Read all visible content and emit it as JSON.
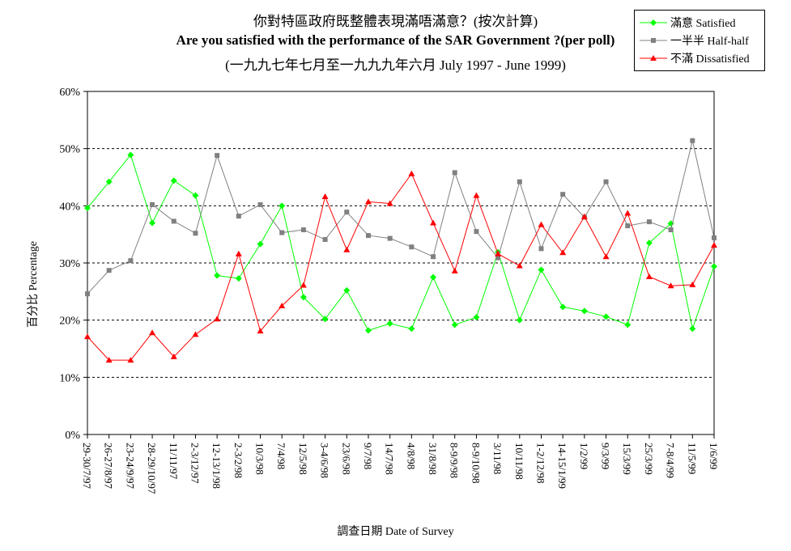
{
  "title": {
    "line1": "你對特區政府既整體表現滿唔滿意？(按次計算)",
    "line2": "Are you satisfied with the performance of the SAR Government ?(per poll)",
    "line3": "(一九九七年七月至一九九九年六月 July 1997 - June 1999)"
  },
  "legend": {
    "satisfied": "滿意 Satisfied",
    "half": "一半半 Half-half",
    "dissatisfied": "不滿 Dissatisfied"
  },
  "colors": {
    "satisfied": "#00ff00",
    "half": "#808080",
    "dissatisfied": "#ff0000"
  },
  "chart_data": {
    "type": "line",
    "title": "Are you satisfied with the performance of the SAR Government ?(per poll)",
    "xlabel": "調查日期 Date of Survey",
    "ylabel": "百分比 Percentage",
    "ylim": [
      0,
      60
    ],
    "yticks": [
      "0%",
      "10%",
      "20%",
      "30%",
      "40%",
      "50%",
      "60%"
    ],
    "grid": "horizontal dashed",
    "legend_position": "top-right",
    "categories": [
      "29-30/7/97",
      "26-27/8/97",
      "23-24/9/97",
      "28-29/10/97",
      "11/11/97",
      "2-3/12/97",
      "12-13/1/98",
      "2-3/2/98",
      "10/3/98",
      "7/4/98",
      "12/5/98",
      "3-4/6/98",
      "23/6/98",
      "9/7/98",
      "14/7/98",
      "4/8/98",
      "31/8/98",
      "8-9/9/98",
      "8-9/10/98",
      "3/11/98",
      "10/11/98",
      "1-2/12/98",
      "14-15/1/99",
      "1/2/99",
      "9/3/99",
      "15/3/99",
      "25/3/99",
      "7-8/4/99",
      "11/5/99",
      "1/6/99"
    ],
    "series": [
      {
        "name": "滿意 Satisfied",
        "marker": "diamond",
        "values": [
          39.6,
          44.2,
          48.9,
          37.0,
          44.4,
          41.8,
          27.8,
          27.3,
          33.3,
          40.0,
          24.0,
          20.2,
          25.2,
          18.2,
          19.4,
          18.5,
          27.5,
          19.2,
          20.5,
          31.9,
          20.0,
          28.8,
          22.3,
          21.6,
          20.6,
          19.2,
          33.5,
          36.9,
          18.5,
          29.4
        ]
      },
      {
        "name": "一半半 Half-half",
        "marker": "square",
        "values": [
          24.6,
          28.7,
          30.4,
          40.2,
          37.3,
          35.2,
          48.8,
          38.2,
          40.2,
          35.3,
          35.8,
          34.1,
          38.9,
          34.8,
          34.3,
          32.8,
          31.1,
          45.8,
          35.5,
          30.9,
          44.2,
          32.5,
          42.0,
          38.0,
          44.2,
          36.5,
          37.2,
          35.8,
          51.4,
          34.4
        ]
      },
      {
        "name": "不滿 Dissatisfied",
        "marker": "triangle",
        "values": [
          17.1,
          13.0,
          13.0,
          17.8,
          13.6,
          17.5,
          20.2,
          31.6,
          18.1,
          22.5,
          26.1,
          41.6,
          32.3,
          40.7,
          40.4,
          45.6,
          37.0,
          28.6,
          41.8,
          31.6,
          29.5,
          36.7,
          31.8,
          38.1,
          31.1,
          38.7,
          27.6,
          26.0,
          26.2,
          33.1
        ]
      }
    ]
  }
}
